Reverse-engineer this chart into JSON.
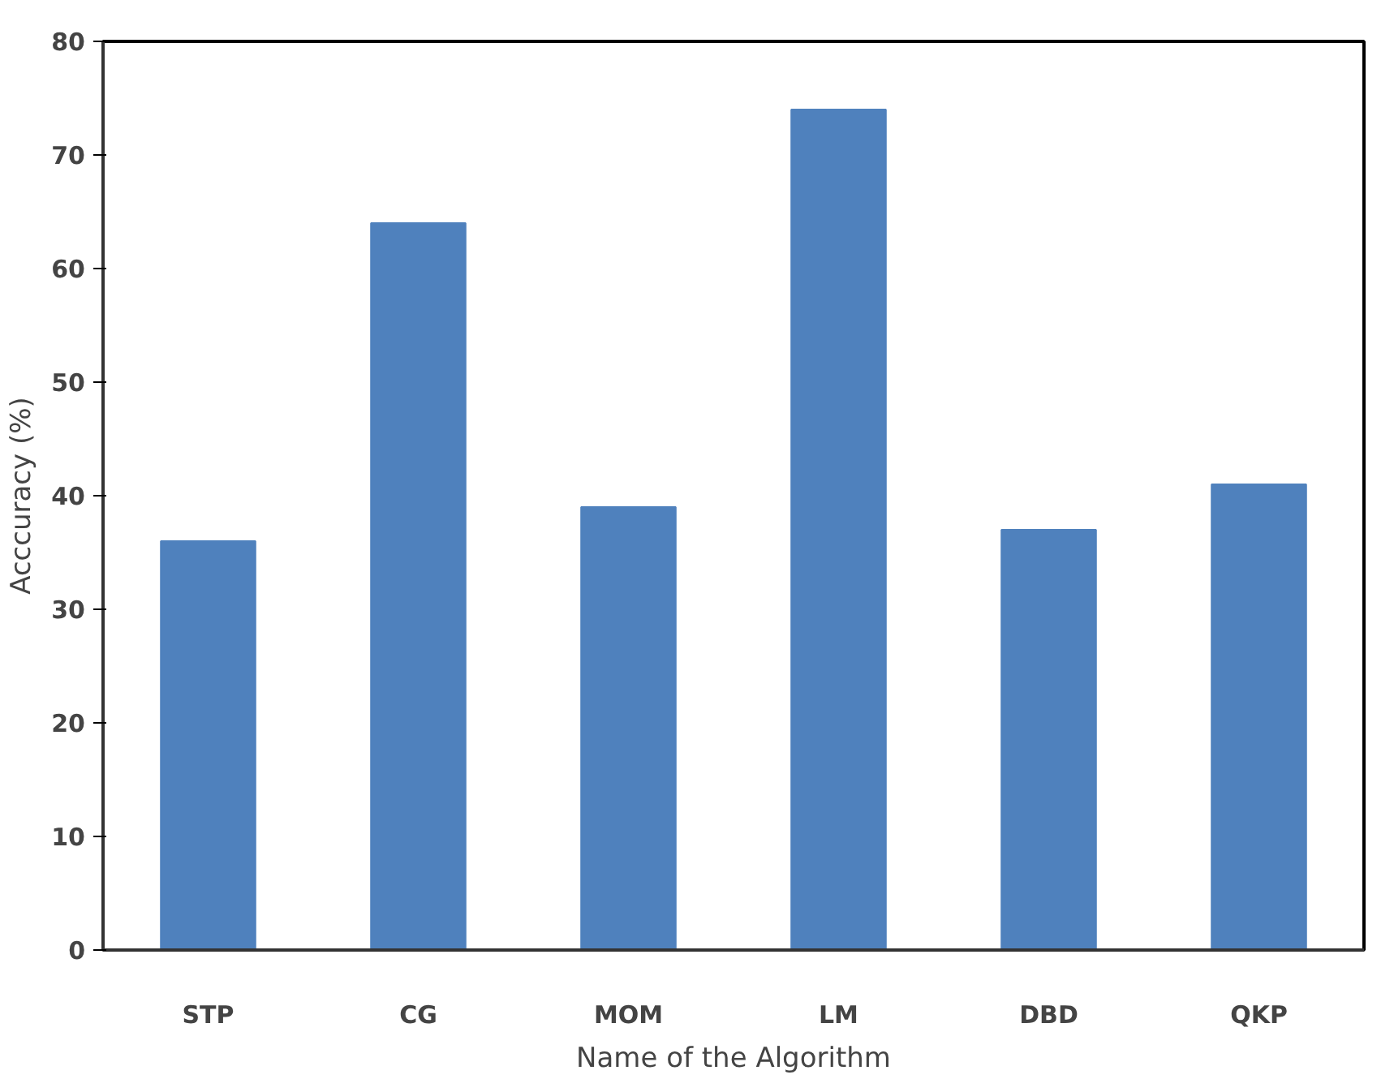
{
  "chart_data": {
    "type": "bar",
    "xlabel": "Name of the Algorithm",
    "ylabel": "Acccuracy (%)",
    "categories": [
      "STP",
      "CG",
      "MOM",
      "LM",
      "DBD",
      "QKP"
    ],
    "values": [
      36,
      64,
      39,
      74,
      37,
      41
    ],
    "color": "#4f81bd",
    "ylim": [
      0,
      80
    ],
    "yticks": [
      0,
      10,
      20,
      30,
      40,
      50,
      60,
      70,
      80
    ],
    "grid": false
  }
}
